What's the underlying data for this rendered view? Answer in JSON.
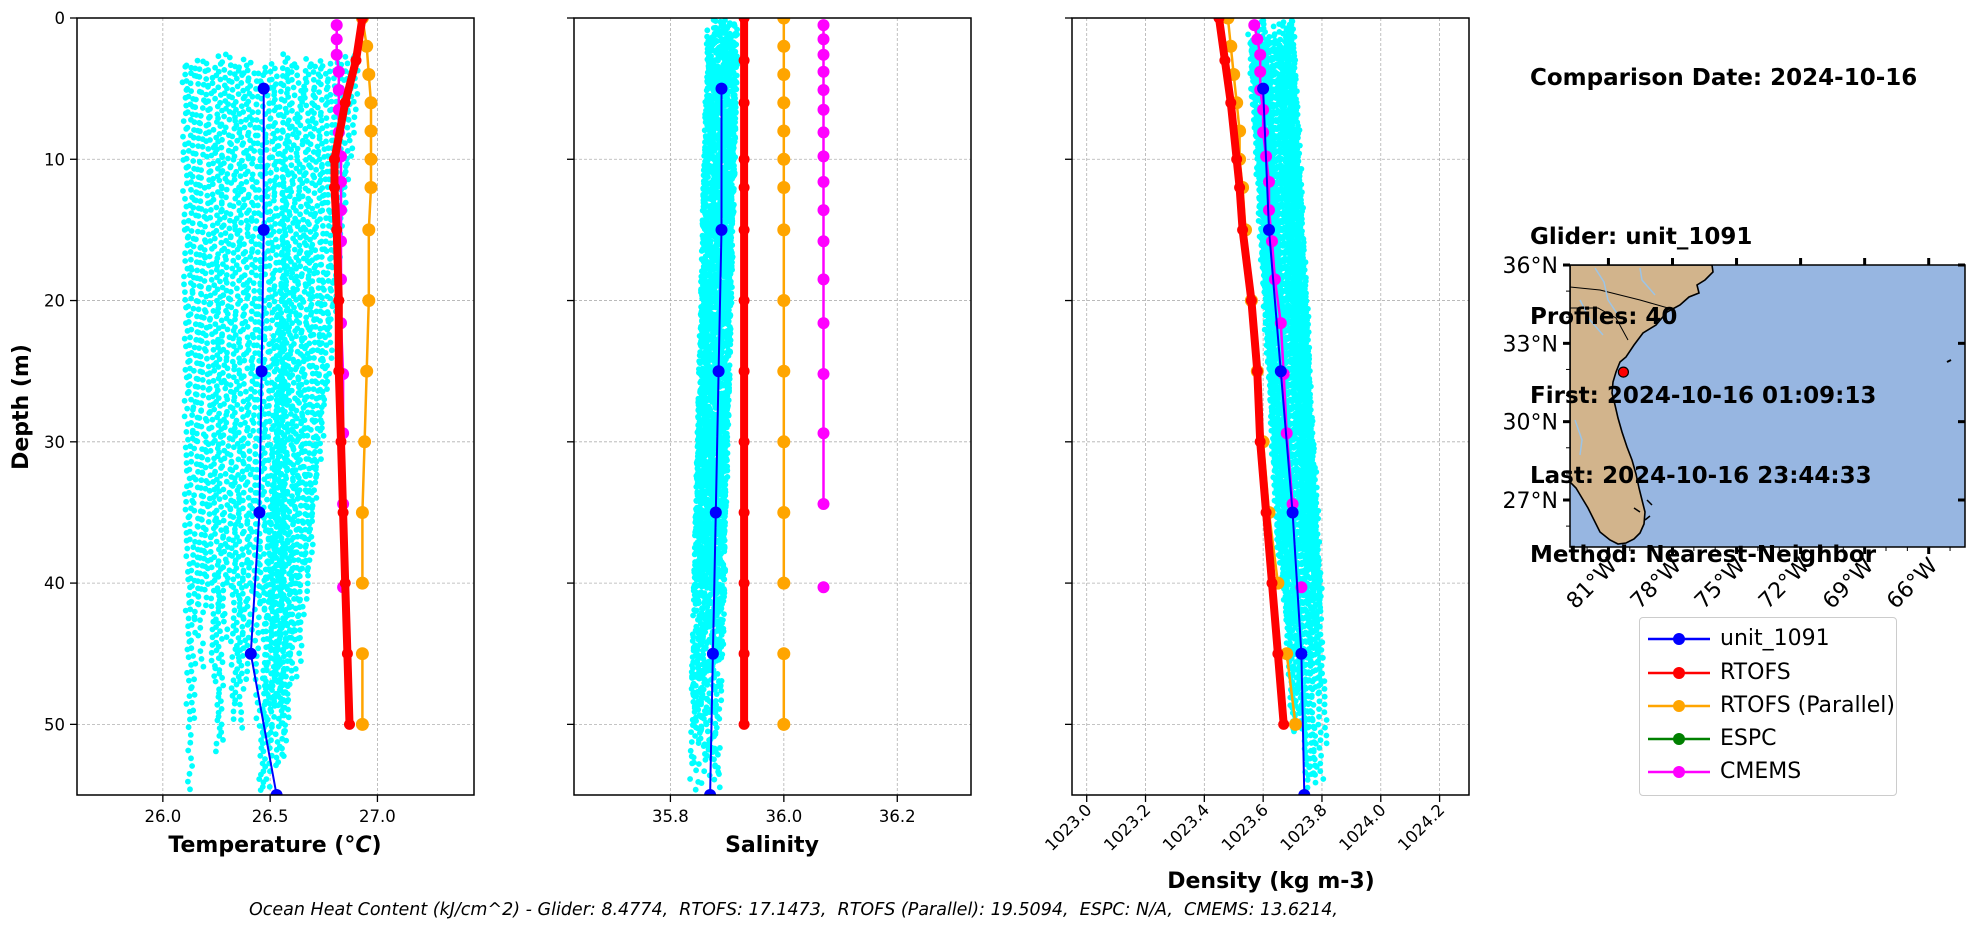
{
  "info": {
    "lines": [
      "Comparison Date: 2024-10-16",
      "",
      "Glider: unit_1091",
      "Profiles: 40",
      "First: 2024-10-16 01:09:13",
      "Last: 2024-10-16 23:44:33",
      "Method: Nearest-Neighbor"
    ]
  },
  "footer": "Ocean Heat Content (kJ/cm^2) - Glider: 8.4774,  RTOFS: 17.1473,  RTOFS (Parallel): 19.5094,  ESPC: N/A,  CMEMS: 13.6214,",
  "legend": [
    {
      "label": "unit_1091",
      "color": "#0000ff"
    },
    {
      "label": "RTOFS",
      "color": "#ff0000"
    },
    {
      "label": "RTOFS (Parallel)",
      "color": "#ffa500"
    },
    {
      "label": "ESPC",
      "color": "#008000"
    },
    {
      "label": "CMEMS",
      "color": "#ff00ff"
    }
  ],
  "colors": {
    "glider_scatter": "#00ffff",
    "land": "#d2b48c",
    "ocean": "#97b6e1",
    "grid": "#b0b0b0"
  },
  "chart_data": [
    {
      "type": "line",
      "xlabel": "Temperature (°C)",
      "ylabel": "Depth (m)",
      "xlim": [
        25.6,
        27.45
      ],
      "ylim": [
        55,
        0
      ],
      "xticks": [
        "26.0",
        "26.5",
        "27.0"
      ],
      "yticks": [
        "0",
        "10",
        "20",
        "30",
        "40",
        "50"
      ],
      "grid": true,
      "scatter_cloud": {
        "name": "unit_1091 profiles",
        "x_range": [
          26.1,
          26.9
        ],
        "depth_range": [
          2,
          55
        ]
      },
      "series": [
        {
          "name": "unit_1091",
          "x": [
            26.47,
            26.47,
            26.46,
            26.45,
            26.41,
            26.53
          ],
          "depth": [
            5,
            15,
            25,
            35,
            45,
            55
          ]
        },
        {
          "name": "RTOFS",
          "x": [
            26.93,
            26.9,
            26.85,
            26.8,
            26.8,
            26.81,
            26.82,
            26.82,
            26.83,
            26.84,
            26.85,
            26.86,
            26.87
          ],
          "depth": [
            0,
            3,
            6,
            10,
            12,
            15,
            20,
            25,
            30,
            35,
            40,
            45,
            50
          ]
        },
        {
          "name": "RTOFS (Parallel)",
          "x": [
            26.93,
            26.95,
            26.96,
            26.97,
            26.97,
            26.97,
            26.97,
            26.96,
            26.96,
            26.95,
            26.94,
            26.93,
            26.93
          ],
          "depth": [
            0,
            2,
            4,
            6,
            8,
            10,
            12,
            15,
            20,
            25,
            30,
            35,
            40
          ]
        },
        {
          "name": "RTOFS (Parallel) deep",
          "x": [
            26.93,
            26.93
          ],
          "depth": [
            45,
            50
          ]
        },
        {
          "name": "CMEMS",
          "x": [
            26.81,
            26.81,
            26.81,
            26.82,
            26.82,
            26.82,
            26.82,
            26.83,
            26.83,
            26.83,
            26.83,
            26.83,
            26.83,
            26.84,
            26.84,
            26.84
          ],
          "depth": [
            0.5,
            1.5,
            2.6,
            3.8,
            5.1,
            6.5,
            8.1,
            9.8,
            11.6,
            13.6,
            15.8,
            18.5,
            21.6,
            25.2,
            29.4,
            34.4
          ]
        },
        {
          "name": "CMEMS deep",
          "x": [
            26.84
          ],
          "depth": [
            40.3
          ]
        }
      ]
    },
    {
      "type": "line",
      "xlabel": "Salinity",
      "xlim": [
        35.63,
        36.33
      ],
      "ylim": [
        55,
        0
      ],
      "xticks": [
        "35.8",
        "36.0",
        "36.2"
      ],
      "grid": true,
      "scatter_cloud": {
        "name": "unit_1091 profiles",
        "x_range": [
          35.865,
          35.92
        ],
        "depth_range": [
          0,
          55
        ]
      },
      "series": [
        {
          "name": "unit_1091",
          "x": [
            35.89,
            35.89,
            35.885,
            35.88,
            35.875,
            35.87
          ],
          "depth": [
            5,
            15,
            25,
            35,
            45,
            55
          ]
        },
        {
          "name": "RTOFS",
          "x": [
            35.93,
            35.93,
            35.93,
            35.93,
            35.93,
            35.93,
            35.93,
            35.93,
            35.93,
            35.93,
            35.93,
            35.93,
            35.93
          ],
          "depth": [
            0,
            3,
            6,
            10,
            12,
            15,
            20,
            25,
            30,
            35,
            40,
            45,
            50
          ]
        },
        {
          "name": "RTOFS (Parallel)",
          "x": [
            36.0,
            36.0,
            36.0,
            36.0,
            36.0,
            36.0,
            36.0,
            36.0,
            36.0,
            36.0,
            36.0,
            36.0,
            36.0
          ],
          "depth": [
            0,
            2,
            4,
            6,
            8,
            10,
            12,
            15,
            20,
            25,
            30,
            35,
            40
          ]
        },
        {
          "name": "RTOFS (Parallel) deep",
          "x": [
            36.0,
            36.0
          ],
          "depth": [
            45,
            50
          ]
        },
        {
          "name": "CMEMS",
          "x": [
            36.07,
            36.07,
            36.07,
            36.07,
            36.07,
            36.07,
            36.07,
            36.07,
            36.07,
            36.07,
            36.07,
            36.07,
            36.07,
            36.07,
            36.07,
            36.07
          ],
          "depth": [
            0.5,
            1.5,
            2.6,
            3.8,
            5.1,
            6.5,
            8.1,
            9.8,
            11.6,
            13.6,
            15.8,
            18.5,
            21.6,
            25.2,
            29.4,
            34.4
          ]
        },
        {
          "name": "CMEMS deep",
          "x": [
            36.07
          ],
          "depth": [
            40.3
          ]
        }
      ]
    },
    {
      "type": "line",
      "xlabel": "Density (kg m-3)",
      "xlim": [
        1022.95,
        1024.3
      ],
      "ylim": [
        55,
        0
      ],
      "xticks": [
        "1023.0",
        "1023.2",
        "1023.4",
        "1023.6",
        "1023.8",
        "1024.0",
        "1024.2"
      ],
      "grid": true,
      "scatter_cloud": {
        "name": "unit_1091 profiles",
        "x_range_top": [
          1023.55,
          1023.7
        ],
        "x_range_bottom": [
          1023.7,
          1023.83
        ],
        "depth_range": [
          0,
          55
        ]
      },
      "series": [
        {
          "name": "unit_1091",
          "x": [
            1023.6,
            1023.62,
            1023.66,
            1023.7,
            1023.73,
            1023.74
          ],
          "depth": [
            5,
            15,
            25,
            35,
            45,
            55
          ]
        },
        {
          "name": "RTOFS",
          "x": [
            1023.45,
            1023.47,
            1023.49,
            1023.51,
            1023.52,
            1023.53,
            1023.56,
            1023.58,
            1023.59,
            1023.61,
            1023.63,
            1023.65,
            1023.67
          ],
          "depth": [
            0,
            3,
            6,
            10,
            12,
            15,
            20,
            25,
            30,
            35,
            40,
            45,
            50
          ]
        },
        {
          "name": "RTOFS (Parallel)",
          "x": [
            1023.48,
            1023.49,
            1023.5,
            1023.51,
            1023.52,
            1023.52,
            1023.53,
            1023.54,
            1023.56,
            1023.58,
            1023.6,
            1023.62,
            1023.65
          ],
          "depth": [
            0,
            2,
            4,
            6,
            8,
            10,
            12,
            15,
            20,
            25,
            30,
            35,
            40
          ]
        },
        {
          "name": "RTOFS (Parallel) deep",
          "x": [
            1023.68,
            1023.71
          ],
          "depth": [
            45,
            50
          ]
        },
        {
          "name": "CMEMS",
          "x": [
            1023.57,
            1023.58,
            1023.59,
            1023.59,
            1023.59,
            1023.6,
            1023.6,
            1023.61,
            1023.62,
            1023.62,
            1023.63,
            1023.64,
            1023.66,
            1023.67,
            1023.68,
            1023.7
          ],
          "depth": [
            0.5,
            1.5,
            2.6,
            3.8,
            5.1,
            6.5,
            8.1,
            9.8,
            11.6,
            13.6,
            15.8,
            18.5,
            21.6,
            25.2,
            29.4,
            34.4
          ]
        },
        {
          "name": "CMEMS deep",
          "x": [
            1023.73
          ],
          "depth": [
            40.3
          ]
        }
      ]
    }
  ],
  "map": {
    "lon_range": [
      -82.8,
      -64.3
    ],
    "lat_range": [
      25.2,
      36.0
    ],
    "lat_ticks": [
      "36°N",
      "33°N",
      "30°N",
      "27°N"
    ],
    "lat_values": [
      36,
      33,
      30,
      27
    ],
    "lon_ticks": [
      "81°W",
      "78°W",
      "75°W",
      "72°W",
      "69°W",
      "66°W"
    ],
    "lon_values": [
      -81,
      -78,
      -75,
      -72,
      -69,
      -66
    ],
    "glider_position": {
      "lon": -80.3,
      "lat": 31.9
    }
  }
}
